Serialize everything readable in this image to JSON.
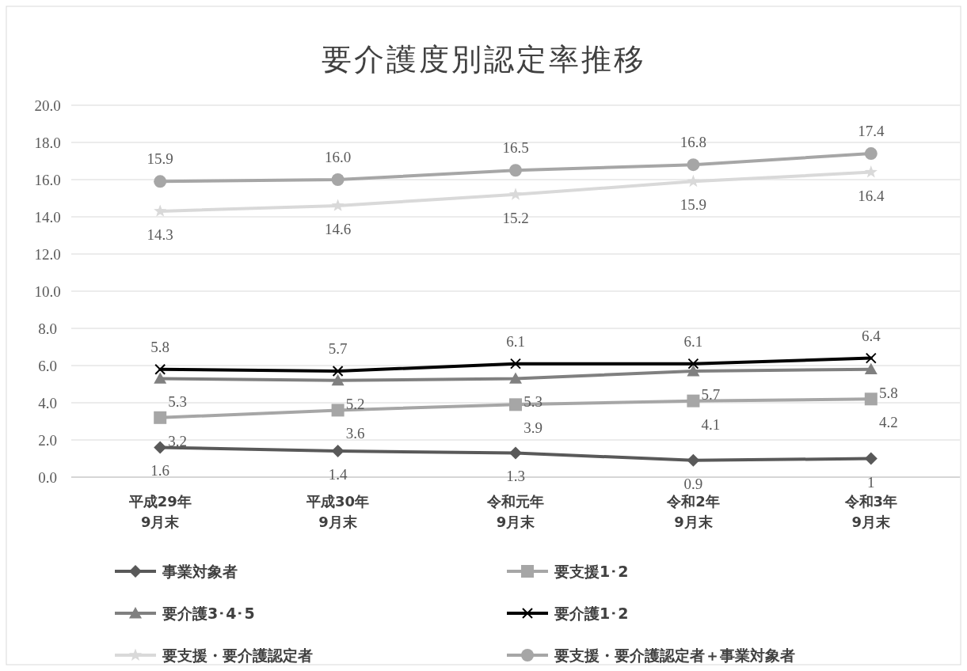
{
  "chart_data": {
    "type": "line",
    "title": "要介護度別認定率推移",
    "categories": [
      "平成29年\n9月末",
      "平成30年\n9月末",
      "令和元年\n9月末",
      "令和2年\n9月末",
      "令和3年\n9月末"
    ],
    "ylim": [
      0,
      20
    ],
    "yticks": [
      {
        "value": 0,
        "label": "0.0"
      },
      {
        "value": 2,
        "label": "2.0"
      },
      {
        "value": 4,
        "label": "4.0"
      },
      {
        "value": 6,
        "label": "6.0"
      },
      {
        "value": 8,
        "label": "8.0"
      },
      {
        "value": 10,
        "label": "10.0"
      },
      {
        "value": 12,
        "label": "12.0"
      },
      {
        "value": 14,
        "label": "14.0"
      },
      {
        "value": 16,
        "label": "16.0"
      },
      {
        "value": 18,
        "label": "18.0"
      },
      {
        "value": 20,
        "label": "20.0"
      }
    ],
    "grid": "y",
    "legend": "bottom",
    "series": [
      {
        "name": "事業対象者",
        "color": "#595959",
        "marker": "diamond",
        "values": [
          1.6,
          1.4,
          1.3,
          0.9,
          1
        ],
        "value_labels": [
          "1.6",
          "1.4",
          "1.3",
          "0.9",
          "1"
        ]
      },
      {
        "name": "要支援1･2",
        "color": "#a6a6a6",
        "marker": "square",
        "values": [
          3.2,
          3.6,
          3.9,
          4.1,
          4.2
        ],
        "value_labels": [
          "3.2",
          "3.6",
          "3.9",
          "4.1",
          "4.2"
        ]
      },
      {
        "name": "要介護3･4･5",
        "color": "#808080",
        "marker": "triangle",
        "values": [
          5.3,
          5.2,
          5.3,
          5.7,
          5.8
        ],
        "value_labels": [
          "5.3",
          "5.2",
          "5.3",
          "5.7",
          "5.8"
        ]
      },
      {
        "name": "要介護1･2",
        "color": "#000000",
        "marker": "cross",
        "values": [
          5.8,
          5.7,
          6.1,
          6.1,
          6.4
        ],
        "value_labels": [
          "5.8",
          "5.7",
          "6.1",
          "6.1",
          "6.4"
        ]
      },
      {
        "name": "要支援・要介護認定者",
        "color": "#d9d9d9",
        "marker": "star",
        "values": [
          14.3,
          14.6,
          15.2,
          15.9,
          16.4
        ],
        "value_labels": [
          "14.3",
          "14.6",
          "15.2",
          "15.9",
          "16.4"
        ]
      },
      {
        "name": "要支援・要介護認定者＋事業対象者",
        "color": "#a6a6a6",
        "marker": "circle",
        "values": [
          15.9,
          16.0,
          16.5,
          16.8,
          17.4
        ],
        "value_labels": [
          "15.9",
          "16.0",
          "16.5",
          "16.8",
          "17.4"
        ]
      }
    ]
  }
}
